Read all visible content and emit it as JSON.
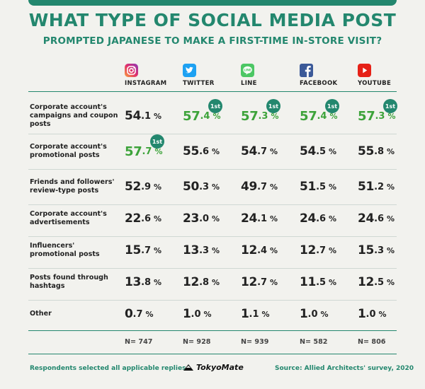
{
  "title": "WHAT TYPE OF SOCIAL MEDIA POST",
  "subtitle": "PROMPTED JAPANESE TO MAKE A FIRST-TIME IN-STORE VISIT?",
  "badge_label": "1st",
  "percent_sign": "%",
  "chart_data": {
    "type": "table",
    "columns": [
      {
        "name": "INSTAGRAM",
        "icon": "instagram-icon",
        "color": "#e1306c",
        "n": "N= 747"
      },
      {
        "name": "TWITTER",
        "icon": "twitter-icon",
        "color": "#1da1f2",
        "n": "N= 928"
      },
      {
        "name": "LINE",
        "icon": "line-icon",
        "color": "#4cc764",
        "n": "N= 939"
      },
      {
        "name": "FACEBOOK",
        "icon": "facebook-icon",
        "color": "#3b5998",
        "n": "N= 582"
      },
      {
        "name": "YOUTUBE",
        "icon": "youtube-icon",
        "color": "#e62117",
        "n": "N= 806"
      }
    ],
    "rows": [
      {
        "label": "Corporate account's campaigns and coupon posts",
        "values": [
          54.1,
          57.4,
          57.3,
          57.4,
          57.3
        ],
        "first": [
          false,
          true,
          true,
          true,
          true
        ]
      },
      {
        "label": "Corporate account's promotional posts",
        "values": [
          57.7,
          55.6,
          54.7,
          54.5,
          55.8
        ],
        "first": [
          true,
          false,
          false,
          false,
          false
        ]
      },
      {
        "label": "Friends and followers' review-type posts",
        "values": [
          52.9,
          50.3,
          49.7,
          51.5,
          51.2
        ],
        "first": [
          false,
          false,
          false,
          false,
          false
        ]
      },
      {
        "label": "Corporate account's advertisements",
        "values": [
          22.6,
          23.0,
          24.1,
          24.6,
          24.6
        ],
        "first": [
          false,
          false,
          false,
          false,
          false
        ]
      },
      {
        "label": "Influencers' promotional posts",
        "values": [
          15.7,
          13.3,
          12.4,
          12.7,
          15.3
        ],
        "first": [
          false,
          false,
          false,
          false,
          false
        ]
      },
      {
        "label": "Posts found through hashtags",
        "values": [
          13.8,
          12.8,
          12.7,
          11.5,
          12.5
        ],
        "first": [
          false,
          false,
          false,
          false,
          false
        ]
      },
      {
        "label": "Other",
        "values": [
          0.7,
          1.0,
          1.1,
          1.0,
          1.0
        ],
        "first": [
          false,
          false,
          false,
          false,
          false
        ]
      }
    ],
    "highlight_color": "#3da33a",
    "accent_color": "#23876e"
  },
  "footer": {
    "note": "Respondents selected all applicable replies.",
    "brand": "TokyoMate",
    "source": "Source: Allied Architects' survey, 2020"
  }
}
